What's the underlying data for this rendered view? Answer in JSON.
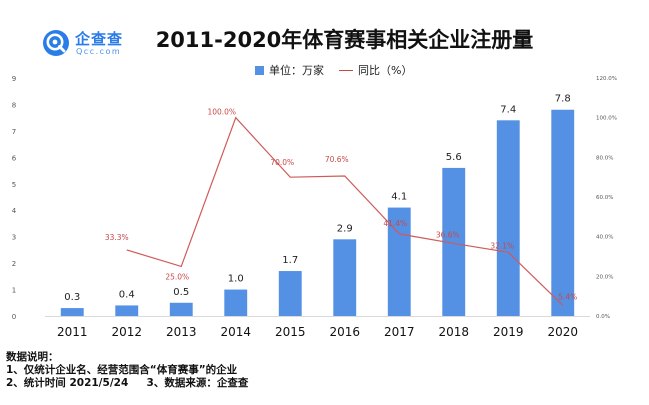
{
  "brand": {
    "name": "企查查",
    "domain": "Qcc.com"
  },
  "title": "2011-2020年体育赛事相关企业注册量",
  "legend": {
    "bar_label": "单位：万家",
    "line_label": "同比（%）"
  },
  "chart_data": {
    "type": "bar",
    "categories": [
      "2011",
      "2012",
      "2013",
      "2014",
      "2015",
      "2016",
      "2017",
      "2018",
      "2019",
      "2020"
    ],
    "series": [
      {
        "name": "单位：万家",
        "type": "bar",
        "axis": "left",
        "values": [
          0.3,
          0.4,
          0.5,
          1.0,
          1.7,
          2.9,
          4.1,
          5.6,
          7.4,
          7.8
        ],
        "labels": [
          "0.3",
          "0.4",
          "0.5",
          "1.0",
          "1.7",
          "2.9",
          "4.1",
          "5.6",
          "7.4",
          "7.8"
        ]
      },
      {
        "name": "同比（%）",
        "type": "line",
        "axis": "right",
        "values": [
          null,
          33.3,
          25.0,
          100.0,
          70.0,
          70.6,
          41.4,
          36.6,
          32.1,
          5.4
        ],
        "labels": [
          "",
          "33.3%",
          "25.0%",
          "100.0%",
          "70.0%",
          "70.6%",
          "41.4%",
          "36.6%",
          "32.1%",
          "5.4%"
        ]
      }
    ],
    "ylim": [
      0,
      9
    ],
    "yticks": [
      "0",
      "1",
      "2",
      "3",
      "4",
      "5",
      "6",
      "7",
      "8",
      "9"
    ],
    "y2lim": [
      0,
      120
    ],
    "y2ticks": [
      "0.0%",
      "20.0%",
      "40.0%",
      "60.0%",
      "80.0%",
      "100.0%",
      "120.0%"
    ],
    "grid": false,
    "legend_position": "top-center",
    "colors": {
      "bar": "#5491e4",
      "line": "#d05a5a",
      "line_label": "#c84848",
      "axis_text": "#555555"
    }
  },
  "notes": {
    "heading": "数据说明：",
    "line1": "1、仅统计企业名、经营范围含“体育赛事”的企业",
    "line2": "2、统计时间 2021/5/24     3、数据来源：企查查"
  }
}
